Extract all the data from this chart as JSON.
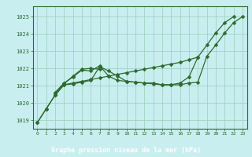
{
  "x": [
    0,
    1,
    2,
    3,
    4,
    5,
    6,
    7,
    8,
    9,
    10,
    11,
    12,
    13,
    14,
    15,
    16,
    17,
    18,
    19,
    20,
    21,
    22,
    23
  ],
  "line1": [
    1018.85,
    1019.65,
    1020.45,
    1021.05,
    1021.15,
    1021.25,
    1021.35,
    1021.45,
    1021.55,
    1021.65,
    1021.75,
    1021.85,
    1021.95,
    1022.05,
    1022.15,
    1022.25,
    1022.35,
    1022.5,
    1022.65,
    1023.35,
    1024.05,
    1024.65,
    1025.0,
    null
  ],
  "line2": [
    1018.85,
    1019.65,
    1020.45,
    1021.05,
    1021.1,
    1021.2,
    1021.3,
    1022.1,
    1021.85,
    1021.55,
    1021.25,
    1021.2,
    1021.15,
    1021.15,
    1021.05,
    1021.05,
    1021.05,
    1021.15,
    1021.2,
    1022.7,
    1023.35,
    1024.05,
    1024.65,
    1025.0
  ],
  "line3": [
    1018.85,
    1019.65,
    1020.55,
    1021.1,
    1021.55,
    1021.95,
    1021.85,
    1021.95,
    null,
    null,
    null,
    null,
    null,
    null,
    null,
    null,
    null,
    null,
    null,
    null,
    null,
    null,
    null,
    null
  ],
  "line4": [
    null,
    null,
    null,
    null,
    null,
    null,
    1022.0,
    null,
    null,
    null,
    null,
    null,
    null,
    null,
    null,
    null,
    null,
    null,
    null,
    null,
    null,
    null,
    null,
    null
  ],
  "ylim": [
    1018.5,
    1025.6
  ],
  "yticks": [
    1019,
    1020,
    1021,
    1022,
    1023,
    1024,
    1025
  ],
  "xlim": [
    -0.5,
    23.5
  ],
  "xticks": [
    0,
    1,
    2,
    3,
    4,
    5,
    6,
    7,
    8,
    9,
    10,
    11,
    12,
    13,
    14,
    15,
    16,
    17,
    18,
    19,
    20,
    21,
    22,
    23
  ],
  "line_color": "#2d6a2d",
  "bg_color": "#c8eef0",
  "grid_color": "#99ccbb",
  "xlabel": "Graphe pression niveau de la mer (hPa)",
  "xlabel_bar_color": "#3d8040",
  "marker_size": 2.5,
  "linewidth": 0.9
}
